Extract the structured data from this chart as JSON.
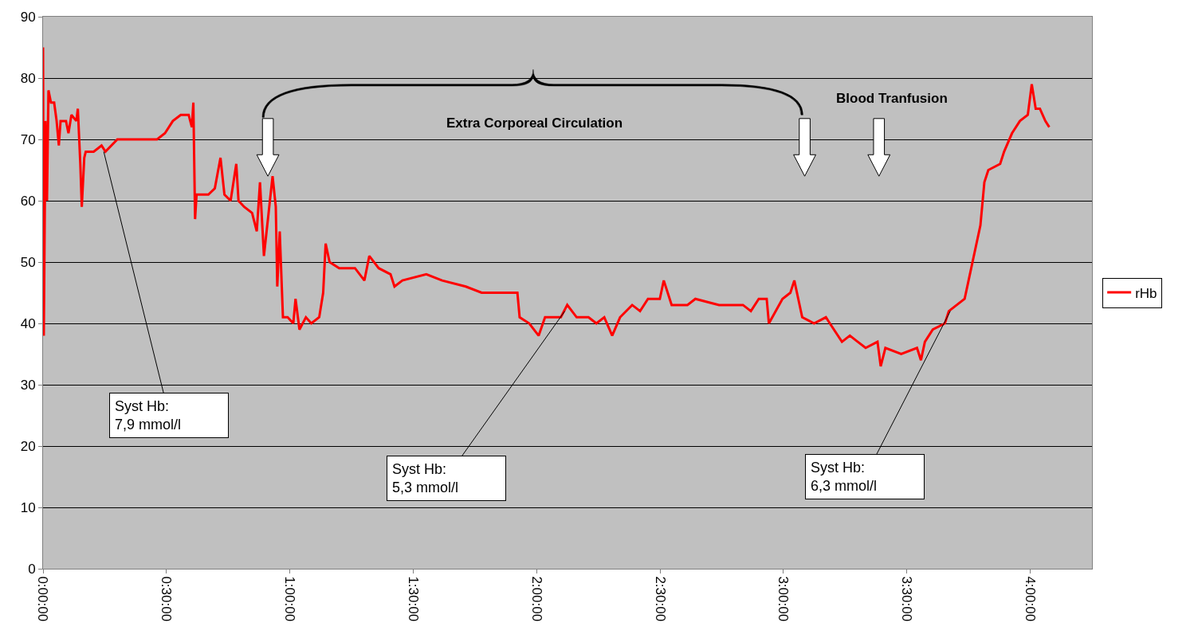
{
  "chart_data": {
    "type": "line",
    "legend": "right",
    "grid": "y",
    "marker": "none",
    "line_style": "solid",
    "xlim": [
      0,
      4.25
    ],
    "ylim": [
      0,
      90
    ],
    "xticks": [
      {
        "value": 0,
        "label": "0:00:00"
      },
      {
        "value": 0.5,
        "label": "0:30:00"
      },
      {
        "value": 1,
        "label": "1:00:00"
      },
      {
        "value": 1.5,
        "label": "1:30:00"
      },
      {
        "value": 2,
        "label": "2:00:00"
      },
      {
        "value": 2.5,
        "label": "2:30:00"
      },
      {
        "value": 3,
        "label": "3:00:00"
      },
      {
        "value": 3.5,
        "label": "3:30:00"
      },
      {
        "value": 4,
        "label": "4:00:00"
      }
    ],
    "yticks": [
      0,
      10,
      20,
      30,
      40,
      50,
      60,
      70,
      80,
      90
    ],
    "x": [
      0,
      0.003,
      0.01,
      0.016,
      0.022,
      0.032,
      0.045,
      0.055,
      0.064,
      0.071,
      0.093,
      0.103,
      0.115,
      0.135,
      0.141,
      0.151,
      0.157,
      0.167,
      0.173,
      0.205,
      0.237,
      0.253,
      0.301,
      0.398,
      0.462,
      0.494,
      0.526,
      0.558,
      0.59,
      0.603,
      0.609,
      0.616,
      0.622,
      0.67,
      0.696,
      0.719,
      0.735,
      0.76,
      0.783,
      0.792,
      0.815,
      0.847,
      0.866,
      0.879,
      0.895,
      0.93,
      0.943,
      0.949,
      0.959,
      0.972,
      0.991,
      1.014,
      1.023,
      1.039,
      1.065,
      1.087,
      1.119,
      1.135,
      1.145,
      1.161,
      1.2,
      1.264,
      1.302,
      1.322,
      1.36,
      1.408,
      1.424,
      1.456,
      1.553,
      1.617,
      1.713,
      1.777,
      1.922,
      1.931,
      1.97,
      2.008,
      2.034,
      2.098,
      2.124,
      2.162,
      2.21,
      2.242,
      2.274,
      2.306,
      2.338,
      2.387,
      2.419,
      2.451,
      2.499,
      2.515,
      2.547,
      2.611,
      2.643,
      2.739,
      2.836,
      2.868,
      2.9,
      2.932,
      2.941,
      2.996,
      3.028,
      3.044,
      3.06,
      3.076,
      3.124,
      3.172,
      3.188,
      3.237,
      3.269,
      3.301,
      3.333,
      3.381,
      3.394,
      3.413,
      3.477,
      3.541,
      3.557,
      3.573,
      3.605,
      3.654,
      3.67,
      3.702,
      3.734,
      3.75,
      3.766,
      3.798,
      3.814,
      3.83,
      3.878,
      3.894,
      3.926,
      3.958,
      3.99,
      4.006,
      4.022,
      4.039,
      4.061,
      4.077
    ],
    "series": [
      {
        "name": "rHb",
        "color": "#ff0000",
        "values": [
          85,
          38,
          73,
          60,
          78,
          76,
          76,
          73,
          69,
          73,
          73,
          71,
          74,
          73,
          75,
          66,
          59,
          67,
          68,
          68,
          69,
          68,
          70,
          70,
          70,
          71,
          73,
          74,
          74,
          72,
          76,
          57,
          61,
          61,
          62,
          67,
          61,
          60,
          66,
          60,
          59,
          58,
          55,
          63,
          51,
          64,
          59,
          46,
          55,
          41,
          41,
          40,
          44,
          39,
          41,
          40,
          41,
          45,
          53,
          50,
          49,
          49,
          47,
          51,
          49,
          48,
          46,
          47,
          48,
          47,
          46,
          45,
          45,
          41,
          40,
          38,
          41,
          41,
          43,
          41,
          41,
          40,
          41,
          38,
          41,
          43,
          42,
          44,
          44,
          47,
          43,
          43,
          44,
          43,
          43,
          42,
          44,
          44,
          40,
          44,
          45,
          47,
          44,
          41,
          40,
          41,
          40,
          37,
          38,
          37,
          36,
          37,
          33,
          36,
          35,
          36,
          34,
          37,
          39,
          40,
          42,
          43,
          44,
          47,
          50,
          56,
          63,
          65,
          66,
          68,
          71,
          73,
          74,
          79,
          75,
          75,
          73,
          72
        ]
      }
    ],
    "annotations": [
      {
        "text": "Syst Hb:\n7,9 mmol/l",
        "x": 0.246,
        "y": 68
      },
      {
        "text": "Syst Hb:\n5,3 mmol/l",
        "x": 2.114,
        "y": 42
      },
      {
        "text": "Syst Hb:\n6,3 mmol/l",
        "x": 3.676,
        "y": 42
      },
      "Extra Corporeal Circulation",
      "Blood Tranfusion"
    ]
  }
}
